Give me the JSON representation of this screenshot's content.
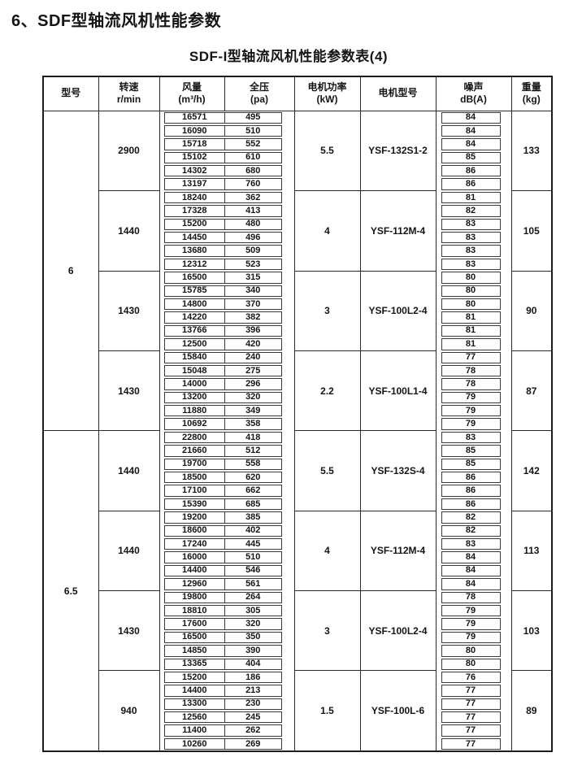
{
  "page": {
    "heading": "6、SDF型轴流风机性能参数",
    "subtitle": "SDF-I型轴流风机性能参数表(4)"
  },
  "colors": {
    "ink": "#151515",
    "border": "#2a2a2a",
    "background": "#ffffff"
  },
  "table": {
    "headers": [
      {
        "line1": "型号",
        "line2": ""
      },
      {
        "line1": "转速",
        "line2": "r/min"
      },
      {
        "line1": "风量",
        "line2": "(m³/h)"
      },
      {
        "line1": "全压",
        "line2": "(pa)"
      },
      {
        "line1": "电机功率",
        "line2": "(kW)"
      },
      {
        "line1": "电机型号",
        "line2": ""
      },
      {
        "line1": "噪声",
        "line2": "dB(A)"
      },
      {
        "line1": "重量",
        "line2": "(kg)"
      }
    ],
    "groups": [
      {
        "model": "6",
        "blocks": [
          {
            "speed": "2900",
            "power": "5.5",
            "motor": "YSF-132S1-2",
            "weight": "133",
            "rows": [
              [
                "16571",
                "495",
                "84"
              ],
              [
                "16090",
                "510",
                "84"
              ],
              [
                "15718",
                "552",
                "84"
              ],
              [
                "15102",
                "610",
                "85"
              ],
              [
                "14302",
                "680",
                "86"
              ],
              [
                "13197",
                "760",
                "86"
              ]
            ]
          },
          {
            "speed": "1440",
            "power": "4",
            "motor": "YSF-112M-4",
            "weight": "105",
            "rows": [
              [
                "18240",
                "362",
                "81"
              ],
              [
                "17328",
                "413",
                "82"
              ],
              [
                "15200",
                "480",
                "83"
              ],
              [
                "14450",
                "496",
                "83"
              ],
              [
                "13680",
                "509",
                "83"
              ],
              [
                "12312",
                "523",
                "83"
              ]
            ]
          },
          {
            "speed": "1430",
            "power": "3",
            "motor": "YSF-100L2-4",
            "weight": "90",
            "rows": [
              [
                "16500",
                "315",
                "80"
              ],
              [
                "15785",
                "340",
                "80"
              ],
              [
                "14800",
                "370",
                "80"
              ],
              [
                "14220",
                "382",
                "81"
              ],
              [
                "13766",
                "396",
                "81"
              ],
              [
                "12500",
                "420",
                "81"
              ]
            ]
          },
          {
            "speed": "1430",
            "power": "2.2",
            "motor": "YSF-100L1-4",
            "weight": "87",
            "rows": [
              [
                "15840",
                "240",
                "77"
              ],
              [
                "15048",
                "275",
                "78"
              ],
              [
                "14000",
                "296",
                "78"
              ],
              [
                "13200",
                "320",
                "79"
              ],
              [
                "11880",
                "349",
                "79"
              ],
              [
                "10692",
                "358",
                "79"
              ]
            ]
          }
        ]
      },
      {
        "model": "6.5",
        "blocks": [
          {
            "speed": "1440",
            "power": "5.5",
            "motor": "YSF-132S-4",
            "weight": "142",
            "rows": [
              [
                "22800",
                "418",
                "83"
              ],
              [
                "21660",
                "512",
                "85"
              ],
              [
                "19700",
                "558",
                "85"
              ],
              [
                "18500",
                "620",
                "86"
              ],
              [
                "17100",
                "662",
                "86"
              ],
              [
                "15390",
                "685",
                "86"
              ]
            ]
          },
          {
            "speed": "1440",
            "power": "4",
            "motor": "YSF-112M-4",
            "weight": "113",
            "rows": [
              [
                "19200",
                "385",
                "82"
              ],
              [
                "18600",
                "402",
                "82"
              ],
              [
                "17240",
                "445",
                "83"
              ],
              [
                "16000",
                "510",
                "84"
              ],
              [
                "14400",
                "546",
                "84"
              ],
              [
                "12960",
                "561",
                "84"
              ]
            ]
          },
          {
            "speed": "1430",
            "power": "3",
            "motor": "YSF-100L2-4",
            "weight": "103",
            "rows": [
              [
                "19800",
                "264",
                "78"
              ],
              [
                "18810",
                "305",
                "79"
              ],
              [
                "17600",
                "320",
                "79"
              ],
              [
                "16500",
                "350",
                "79"
              ],
              [
                "14850",
                "390",
                "80"
              ],
              [
                "13365",
                "404",
                "80"
              ]
            ]
          },
          {
            "speed": "940",
            "power": "1.5",
            "motor": "YSF-100L-6",
            "weight": "89",
            "rows": [
              [
                "15200",
                "186",
                "76"
              ],
              [
                "14400",
                "213",
                "77"
              ],
              [
                "13300",
                "230",
                "77"
              ],
              [
                "12560",
                "245",
                "77"
              ],
              [
                "11400",
                "262",
                "77"
              ],
              [
                "10260",
                "269",
                "77"
              ]
            ]
          }
        ]
      }
    ]
  }
}
